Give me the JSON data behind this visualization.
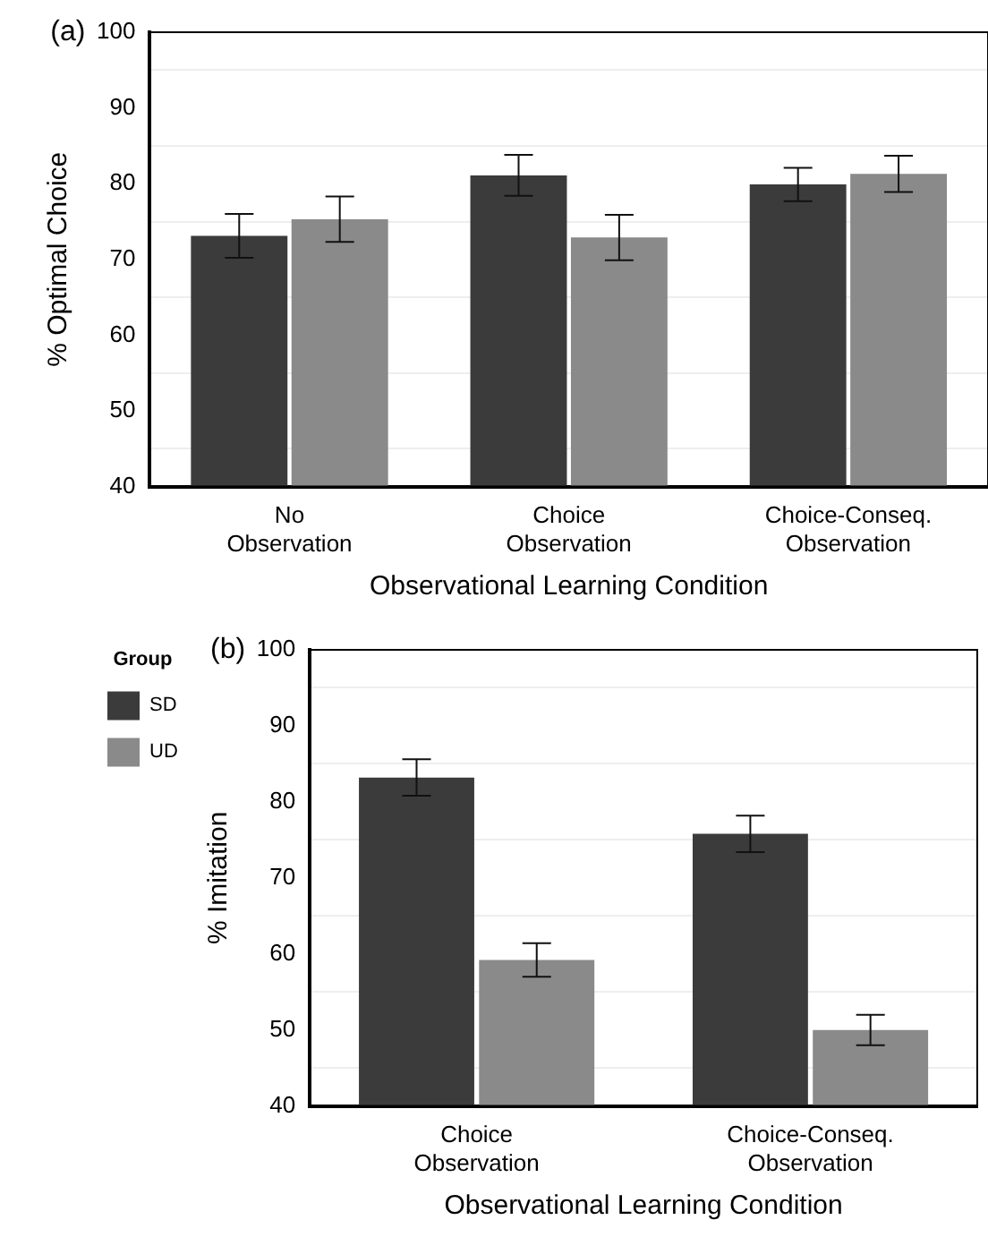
{
  "chart_data": [
    {
      "type": "bar",
      "annotations": [
        "(a)"
      ],
      "ylabel": "% Optimal Choice",
      "xlabel": "Observational Learning Condition",
      "categories": [
        "No Observation",
        "Choice Observation",
        "Choice-Conseq. Observation"
      ],
      "series": [
        {
          "color": "#3b3b3b",
          "values": [
            73.1,
            81.1,
            79.9
          ],
          "errors": [
            2.9,
            2.7,
            2.2
          ]
        },
        {
          "color": "#8a8a8a",
          "values": [
            75.3,
            72.9,
            81.3
          ],
          "errors": [
            3.0,
            3.0,
            2.4
          ]
        }
      ],
      "ylim": [
        40,
        100
      ],
      "yticks": [
        40,
        {
          "value": 45,
          "label": null
        },
        50,
        {
          "value": 55,
          "label": null
        },
        60,
        {
          "value": 65,
          "label": null
        },
        70,
        {
          "value": 75,
          "label": null
        },
        80,
        {
          "value": 85,
          "label": null
        },
        90,
        {
          "value": 95,
          "label": null
        },
        100
      ],
      "grid": "y"
    },
    {
      "type": "bar",
      "annotations": [
        "(b)"
      ],
      "ylabel": "% Imitation",
      "xlabel": "Observational Learning Condition",
      "legend_title": "Group",
      "legend": "left",
      "categories": [
        "Choice Observation",
        "Choice-Conseq. Observation"
      ],
      "series": [
        {
          "name": "SD",
          "color": "#3b3b3b",
          "values": [
            83.2,
            75.8
          ],
          "errors": [
            2.4,
            2.4
          ]
        },
        {
          "name": "UD",
          "color": "#8a8a8a",
          "values": [
            59.2,
            50.0
          ],
          "errors": [
            2.2,
            2.0
          ]
        }
      ],
      "ylim": [
        40,
        100
      ],
      "yticks": [
        40,
        {
          "value": 45,
          "label": null
        },
        50,
        {
          "value": 55,
          "label": null
        },
        60,
        {
          "value": 65,
          "label": null
        },
        70,
        {
          "value": 75,
          "label": null
        },
        80,
        {
          "value": 85,
          "label": null
        },
        90,
        {
          "value": 95,
          "label": null
        },
        100
      ],
      "grid": "y"
    }
  ]
}
